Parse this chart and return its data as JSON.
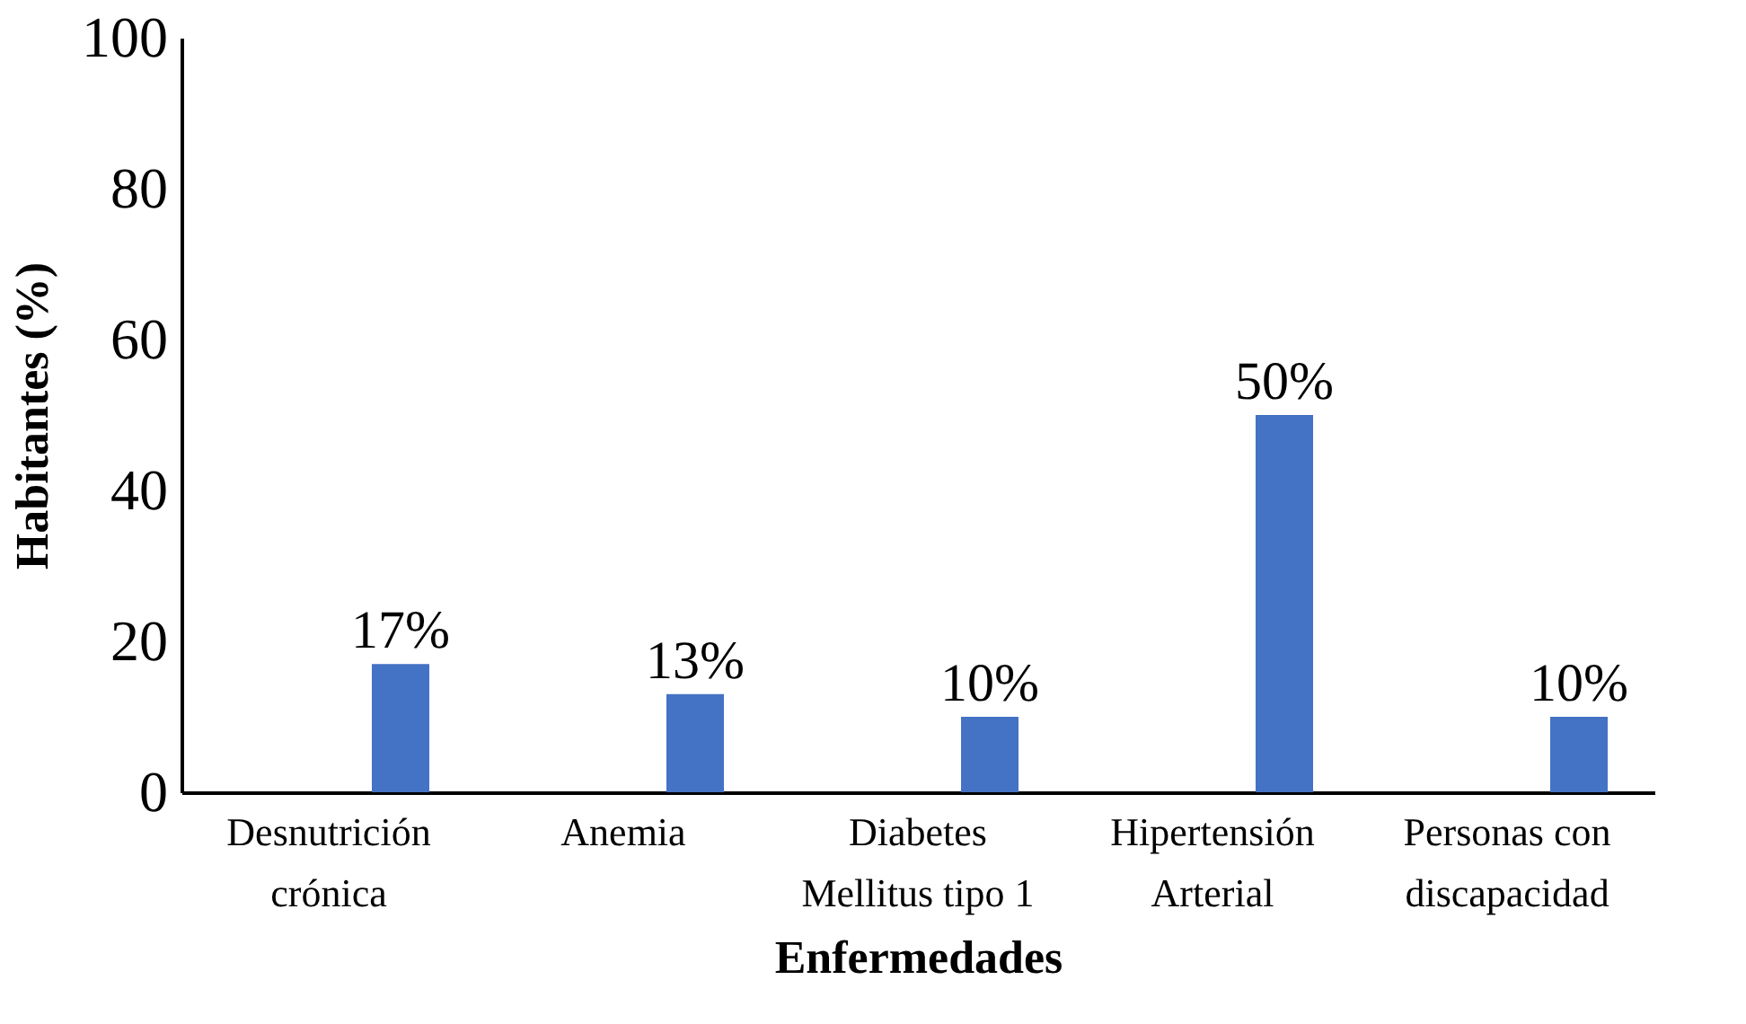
{
  "chart_data": {
    "type": "bar",
    "xlabel": "Enfermedades",
    "ylabel": "Habitantes (%)",
    "categories": [
      "Desnutrición\ncrónica",
      "Anemia",
      "Diabetes\nMellitus tipo 1",
      "Hipertensión\nArterial",
      "Personas con\ndiscapacidad"
    ],
    "values": [
      17,
      13,
      10,
      50,
      10
    ],
    "value_labels": [
      "17%",
      "13%",
      "10%",
      "50%",
      "10%"
    ],
    "color": "#4472c4",
    "ylim": [
      0,
      100
    ],
    "yticks": [
      0,
      20,
      40,
      60,
      80,
      100
    ],
    "grid": false
  }
}
